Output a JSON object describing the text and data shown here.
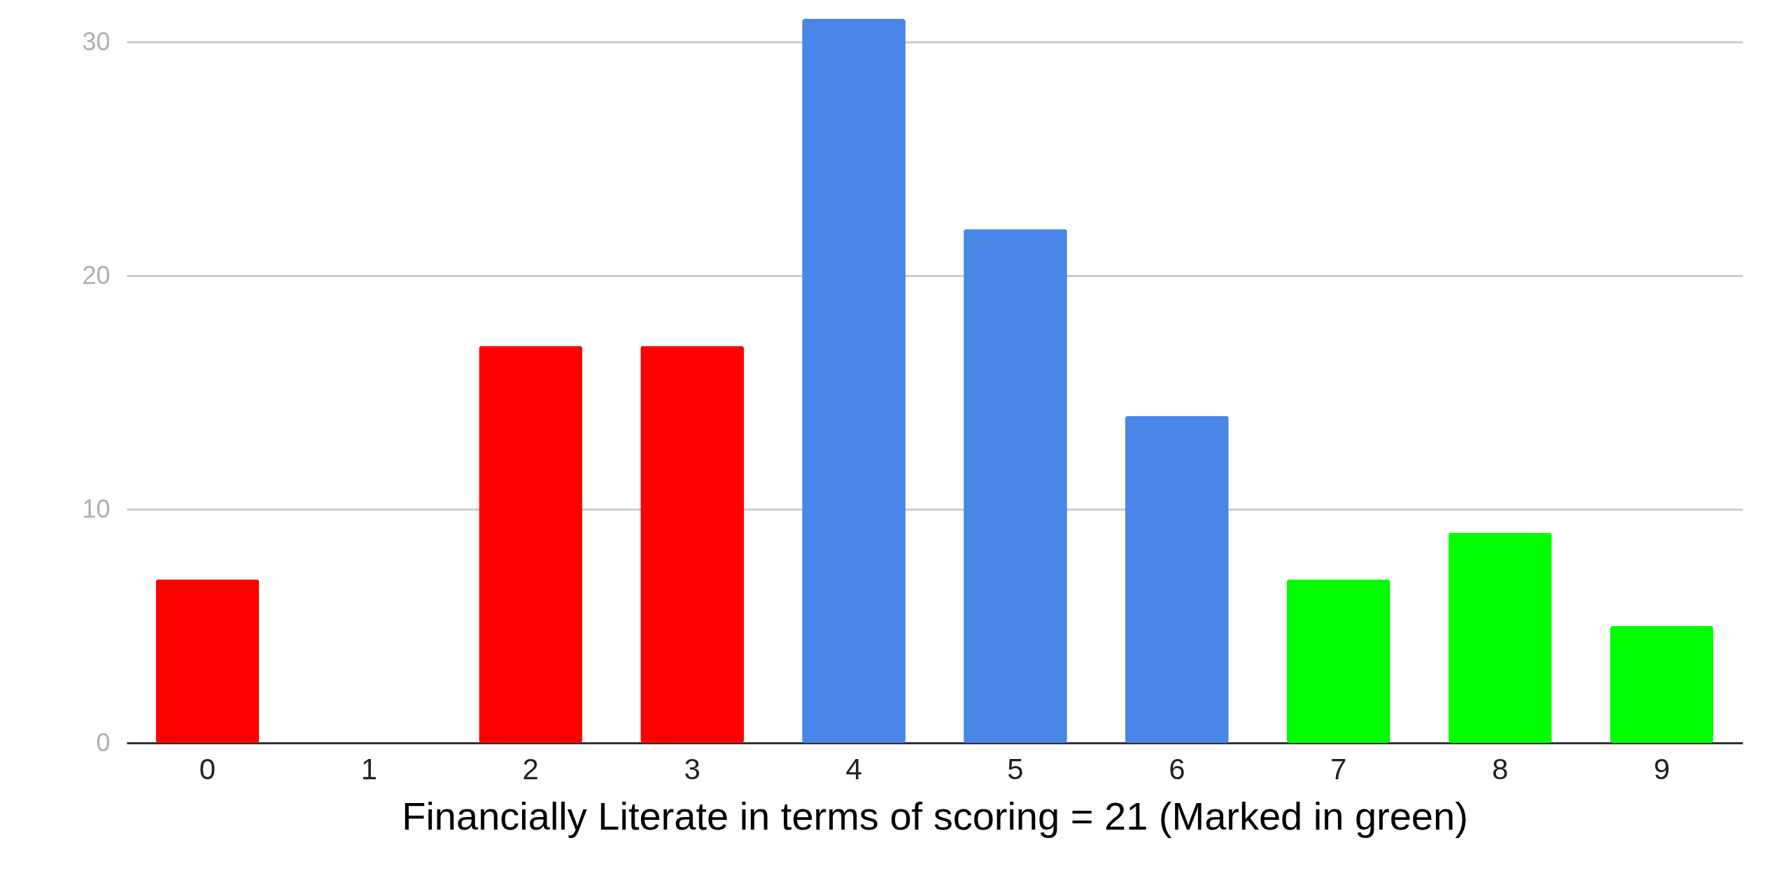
{
  "chart_data": {
    "type": "bar",
    "xlabel": "Financially Literate in terms of scoring = 21 (Marked in green)",
    "categories": [
      "0",
      "1",
      "2",
      "3",
      "4",
      "5",
      "6",
      "7",
      "8",
      "9"
    ],
    "values": [
      7,
      0,
      17,
      17,
      31,
      22,
      14,
      7,
      9,
      5
    ],
    "colors": [
      "#ff0000",
      "#ff0000",
      "#ff0000",
      "#ff0000",
      "#4a86e8",
      "#4a86e8",
      "#4a86e8",
      "#00ff00",
      "#00ff00",
      "#00ff00"
    ],
    "ylim": [
      0,
      31
    ],
    "yticks": [
      0,
      10,
      20,
      30
    ],
    "grid": "y"
  }
}
